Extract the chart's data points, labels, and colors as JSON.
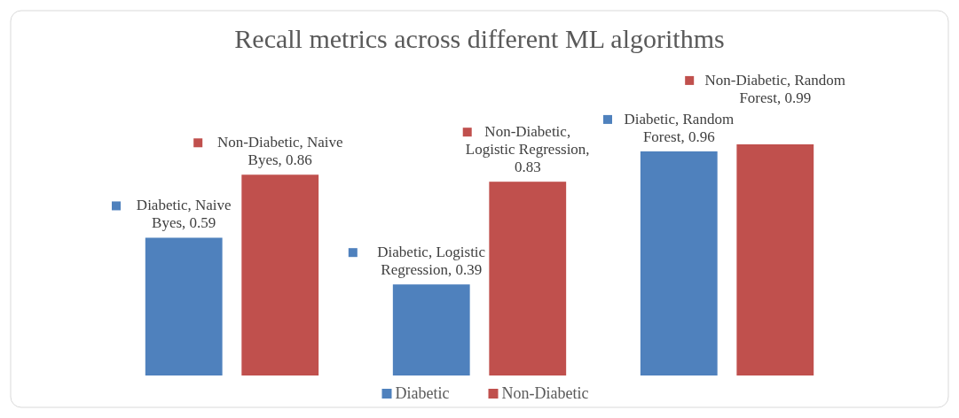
{
  "chart_data": {
    "type": "bar",
    "title": "Recall metrics across different ML algorithms",
    "categories": [
      null,
      null,
      null
    ],
    "legend": "bottom",
    "grid": false,
    "series": [
      {
        "name": "Diabetic",
        "color": "#4f81bd",
        "values": [
          0.59,
          0.39,
          0.96
        ],
        "value_labels": [
          "Diabetic, Naive Byes, 0.59",
          "Diabetic, Logistic Regression, 0.39",
          "Diabetic, Random Forest, 0.96"
        ]
      },
      {
        "name": "Non-Diabetic",
        "color": "#c0504d",
        "values": [
          0.86,
          0.83,
          0.99
        ],
        "value_labels": [
          "Non-Diabetic, Naive Byes, 0.86",
          "Non-Diabetic, Logistic Regression, 0.83",
          "Non-Diabetic, Random Forest, 0.99"
        ]
      }
    ]
  }
}
